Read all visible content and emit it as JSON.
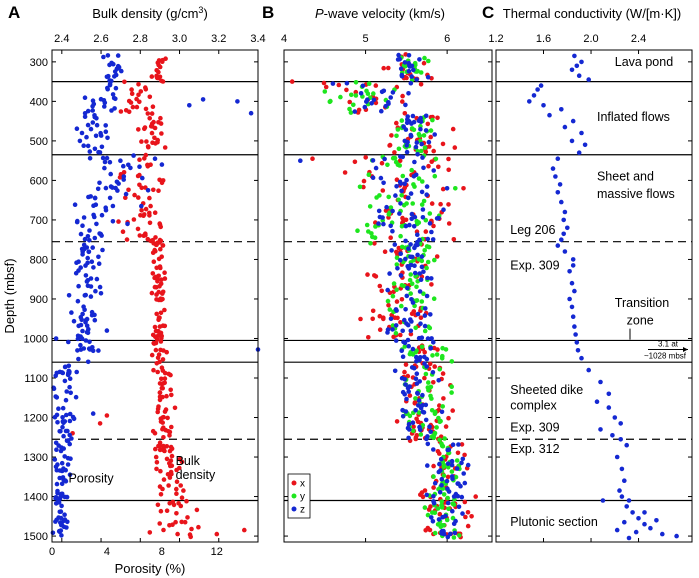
{
  "colors": {
    "red": "#e8141b",
    "green": "#1ee61e",
    "blue": "#1428d2",
    "axis": "#000000"
  },
  "chart_data": [
    {
      "type": "scatter",
      "letter": "A",
      "top_axis_label_prefix": "Bulk density (g/cm",
      "top_axis_label_sup": "3",
      "top_axis_label_suffix": ")",
      "xlabel": "Porosity (%)",
      "ylabel": "Depth (mbsf)",
      "top_ticks": [
        "2.4",
        "2.6",
        "2.8",
        "3.0",
        "3.2",
        "3.4"
      ],
      "top_xlim": [
        2.35,
        3.4
      ],
      "bottom_ticks": [
        "0",
        "4",
        "8",
        "12"
      ],
      "xlim": [
        0,
        15
      ],
      "ylim": [
        270,
        1515
      ],
      "y_ticks": [
        "300",
        "400",
        "500",
        "600",
        "700",
        "800",
        "900",
        "1000",
        "1100",
        "1200",
        "1300",
        "1400",
        "1500"
      ],
      "annotations": [
        {
          "text": "Porosity",
          "x": 1.2,
          "y": 1365
        },
        {
          "text": "Bulk",
          "x": 9.0,
          "y": 1320
        },
        {
          "text": "density",
          "x": 9.0,
          "y": 1355
        }
      ],
      "series": [
        {
          "name": "Porosity",
          "color": "blue",
          "segments": [
            [
              280,
              350,
              3.5,
              5.5
            ],
            [
              350,
              430,
              2.0,
              5.5
            ],
            [
              430,
              535,
              1.5,
              4.5
            ],
            [
              535,
              640,
              2.5,
              7.0
            ],
            [
              640,
              755,
              1.5,
              5.0
            ],
            [
              755,
              890,
              1.0,
              4.0
            ],
            [
              890,
              1060,
              1.0,
              3.5
            ],
            [
              1060,
              1260,
              0.0,
              2.0
            ],
            [
              1260,
              1410,
              0.0,
              1.5
            ],
            [
              1410,
              1505,
              0.0,
              1.2
            ]
          ],
          "points": [
            [
              0.3,
              1000
            ],
            [
              14.5,
              430
            ],
            [
              15.0,
              1028
            ],
            [
              13.5,
              400
            ],
            [
              11.0,
              395
            ],
            [
              10.0,
              410
            ],
            [
              7.5,
              545
            ],
            [
              8.0,
              560
            ],
            [
              7.0,
              625
            ],
            [
              6.5,
              665
            ],
            [
              5.5,
              710
            ],
            [
              3.5,
              870
            ],
            [
              4.0,
              980
            ],
            [
              3.0,
              1190
            ]
          ]
        },
        {
          "name": "Bulk density",
          "color": "red",
          "segments": [
            [
              280,
              350,
              7.0,
              8.6
            ],
            [
              350,
              430,
              4.0,
              8.5
            ],
            [
              430,
              535,
              6.0,
              8.5
            ],
            [
              535,
              755,
              4.5,
              8.8
            ],
            [
              755,
              1060,
              7.2,
              8.4
            ],
            [
              1060,
              1300,
              7.2,
              9.0
            ],
            [
              1300,
              1410,
              7.5,
              9.8
            ],
            [
              1410,
              1505,
              7.0,
              11.0
            ]
          ],
          "points": [
            [
              14.0,
              1485
            ],
            [
              12.0,
              1495
            ],
            [
              3.5,
              1215
            ],
            [
              1.5,
              1240
            ],
            [
              4.0,
              1195
            ],
            [
              9.0,
              1465
            ]
          ]
        }
      ],
      "boundaries": [
        {
          "depth": 350,
          "style": "solid"
        },
        {
          "depth": 535,
          "style": "solid"
        },
        {
          "depth": 755,
          "style": "dashed"
        },
        {
          "depth": 1005,
          "style": "solid"
        },
        {
          "depth": 1060,
          "style": "solid"
        },
        {
          "depth": 1255,
          "style": "dashed"
        },
        {
          "depth": 1410,
          "style": "solid"
        }
      ]
    },
    {
      "type": "scatter",
      "letter": "B",
      "xlabel_italic": "P",
      "xlabel_rest": "-wave velocity (km/s)",
      "top_ticks": [
        "4",
        "5",
        "6"
      ],
      "xlim": [
        4,
        6.55
      ],
      "ylim": [
        270,
        1515
      ],
      "legend": [
        {
          "name": "x",
          "color": "red"
        },
        {
          "name": "y",
          "color": "green"
        },
        {
          "name": "z",
          "color": "blue"
        }
      ],
      "legend_position": "lower-left",
      "series": [
        {
          "name": "x",
          "color": "red",
          "segments": [
            [
              280,
              350,
              5.2,
              5.9
            ],
            [
              350,
              430,
              4.3,
              5.8
            ],
            [
              430,
              540,
              5.2,
              6.2
            ],
            [
              540,
              760,
              4.7,
              6.2
            ],
            [
              760,
              1000,
              4.9,
              5.9
            ],
            [
              1000,
              1260,
              5.3,
              6.1
            ],
            [
              1260,
              1505,
              5.6,
              6.3
            ]
          ],
          "points": [
            [
              4.1,
              350
            ],
            [
              4.35,
              545
            ],
            [
              6.2,
              620
            ],
            [
              6.3,
              1450
            ],
            [
              6.35,
              1400
            ]
          ]
        },
        {
          "name": "y",
          "color": "green",
          "segments": [
            [
              280,
              350,
              5.3,
              5.8
            ],
            [
              350,
              430,
              4.5,
              5.6
            ],
            [
              430,
              540,
              5.3,
              5.9
            ],
            [
              540,
              760,
              4.8,
              6.0
            ],
            [
              760,
              1000,
              5.2,
              5.9
            ],
            [
              1000,
              1260,
              5.4,
              6.1
            ],
            [
              1260,
              1505,
              5.7,
              6.2
            ]
          ],
          "points": [
            [
              4.5,
              375
            ],
            [
              6.1,
              620
            ],
            [
              6.15,
              1330
            ]
          ]
        },
        {
          "name": "z",
          "color": "blue",
          "segments": [
            [
              280,
              350,
              5.3,
              5.8
            ],
            [
              350,
              430,
              4.6,
              5.8
            ],
            [
              430,
              540,
              5.4,
              5.9
            ],
            [
              540,
              760,
              5.0,
              6.0
            ],
            [
              760,
              1000,
              5.2,
              5.9
            ],
            [
              1000,
              1260,
              5.3,
              6.0
            ],
            [
              1260,
              1505,
              5.7,
              6.3
            ]
          ],
          "points": [
            [
              4.2,
              550
            ],
            [
              4.6,
              355
            ],
            [
              6.0,
              620
            ]
          ]
        }
      ]
    },
    {
      "type": "scatter",
      "letter": "C",
      "xlabel": "Thermal conductivity (W/[m·K])",
      "top_ticks": [
        "1.2",
        "1.6",
        "2.0",
        "2.4"
      ],
      "xlim": [
        1.2,
        2.85
      ],
      "ylim": [
        270,
        1515
      ],
      "annotations": [
        {
          "text": "Lava pond",
          "x": 2.2,
          "y": 310
        },
        {
          "text": "Inflated flows",
          "x": 2.05,
          "y": 450
        },
        {
          "text": "Sheet and",
          "x": 2.05,
          "y": 600
        },
        {
          "text": "massive flows",
          "x": 2.05,
          "y": 645
        },
        {
          "text": "Leg 206",
          "x": 1.32,
          "y": 735
        },
        {
          "text": "Exp. 309",
          "x": 1.32,
          "y": 825
        },
        {
          "text": "Transition",
          "x": 2.2,
          "y": 920
        },
        {
          "text": "zone",
          "x": 2.3,
          "y": 965
        },
        {
          "text": "Sheeted dike",
          "x": 1.32,
          "y": 1140
        },
        {
          "text": "complex",
          "x": 1.32,
          "y": 1180
        },
        {
          "text": "Exp. 309",
          "x": 1.32,
          "y": 1235
        },
        {
          "text": "Exp. 312",
          "x": 1.32,
          "y": 1290
        },
        {
          "text": "Plutonic section",
          "x": 1.32,
          "y": 1475
        }
      ],
      "arrow_label_1": "3.1 at",
      "arrow_label_2": "~1028 mbsf",
      "series": [
        {
          "name": "Thermal conductivity",
          "color": "blue",
          "points": [
            [
              1.86,
              285
            ],
            [
              1.92,
              300
            ],
            [
              1.88,
              310
            ],
            [
              1.84,
              320
            ],
            [
              1.9,
              335
            ],
            [
              1.98,
              345
            ],
            [
              1.58,
              360
            ],
            [
              1.55,
              370
            ],
            [
              1.52,
              385
            ],
            [
              1.48,
              400
            ],
            [
              1.6,
              410
            ],
            [
              1.75,
              420
            ],
            [
              1.65,
              435
            ],
            [
              1.85,
              450
            ],
            [
              1.78,
              465
            ],
            [
              1.92,
              480
            ],
            [
              1.84,
              500
            ],
            [
              1.95,
              510
            ],
            [
              1.9,
              530
            ],
            [
              1.72,
              545
            ],
            [
              1.68,
              570
            ],
            [
              1.7,
              590
            ],
            [
              1.74,
              610
            ],
            [
              1.72,
              630
            ],
            [
              1.75,
              655
            ],
            [
              1.78,
              680
            ],
            [
              1.77,
              700
            ],
            [
              1.8,
              720
            ],
            [
              1.77,
              735
            ],
            [
              1.75,
              750
            ],
            [
              1.72,
              765
            ],
            [
              1.78,
              780
            ],
            [
              1.85,
              800
            ],
            [
              1.85,
              815
            ],
            [
              1.82,
              830
            ],
            [
              1.84,
              860
            ],
            [
              1.86,
              880
            ],
            [
              1.82,
              900
            ],
            [
              1.84,
              920
            ],
            [
              1.85,
              945
            ],
            [
              1.86,
              970
            ],
            [
              1.87,
              990
            ],
            [
              1.88,
              1010
            ],
            [
              1.89,
              1030
            ],
            [
              1.92,
              1050
            ],
            [
              1.98,
              1080
            ],
            [
              2.08,
              1110
            ],
            [
              2.15,
              1140
            ],
            [
              2.05,
              1160
            ],
            [
              2.15,
              1175
            ],
            [
              2.2,
              1200
            ],
            [
              2.25,
              1215
            ],
            [
              2.08,
              1230
            ],
            [
              2.18,
              1245
            ],
            [
              2.25,
              1255
            ],
            [
              2.3,
              1270
            ],
            [
              2.22,
              1300
            ],
            [
              2.26,
              1330
            ],
            [
              2.28,
              1360
            ],
            [
              2.24,
              1385
            ],
            [
              2.26,
              1400
            ],
            [
              2.32,
              1410
            ],
            [
              2.1,
              1410
            ],
            [
              2.3,
              1425
            ],
            [
              2.35,
              1440
            ],
            [
              2.4,
              1455
            ],
            [
              2.28,
              1465
            ],
            [
              2.45,
              1470
            ],
            [
              2.5,
              1480
            ],
            [
              2.38,
              1490
            ],
            [
              2.6,
              1495
            ],
            [
              2.72,
              1500
            ],
            [
              2.32,
              1505
            ],
            [
              2.55,
              1460
            ],
            [
              2.22,
              1485
            ],
            [
              2.45,
              1440
            ]
          ]
        }
      ]
    }
  ]
}
